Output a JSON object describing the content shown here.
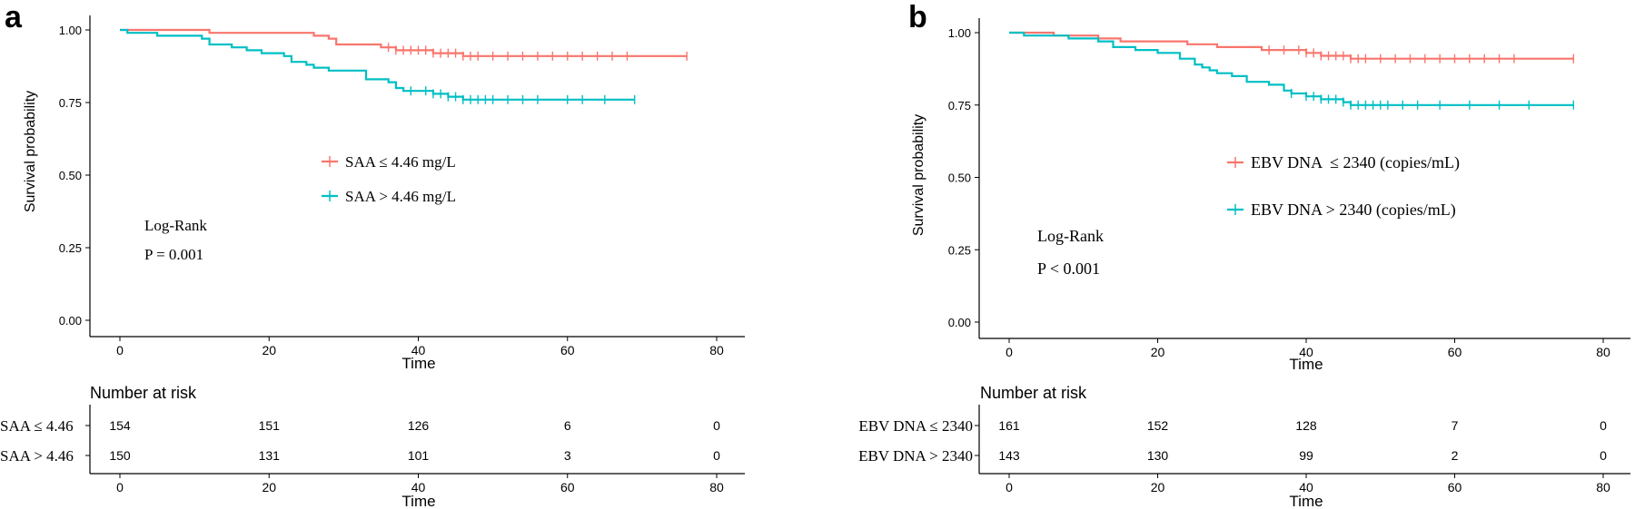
{
  "chart_data": [
    {
      "panel": "a",
      "type": "line",
      "ylabel": "Survival probability",
      "xlabel": "Time",
      "xlim": [
        0,
        80
      ],
      "ylim": [
        0,
        1
      ],
      "x_ticks": [
        "0",
        "20",
        "40",
        "60",
        "80"
      ],
      "y_ticks": [
        "0.00",
        "0.25",
        "0.50",
        "0.75",
        "1.00"
      ],
      "legend_placement": "center",
      "annotation": [
        "Log-Rank",
        "P = 0.001"
      ],
      "series": [
        {
          "name": "SAA ≤ 4.46 mg/L",
          "color": "#f8766d",
          "x": [
            0,
            10,
            12,
            25,
            26,
            28,
            29,
            34,
            35,
            37,
            40,
            42,
            44,
            46,
            76
          ],
          "y": [
            1.0,
            1.0,
            0.99,
            0.99,
            0.98,
            0.97,
            0.95,
            0.95,
            0.94,
            0.93,
            0.93,
            0.92,
            0.92,
            0.91,
            0.91
          ],
          "censor_x": [
            36,
            37,
            38,
            39,
            40,
            41,
            42,
            43,
            44,
            45,
            46,
            47,
            48,
            50,
            52,
            54,
            56,
            58,
            60,
            62,
            64,
            66,
            68,
            76
          ]
        },
        {
          "name": "SAA > 4.46 mg/L",
          "color": "#00bfc4",
          "x": [
            0,
            1,
            3,
            5,
            8,
            11,
            12,
            15,
            17,
            19,
            21,
            22,
            23,
            25,
            26,
            28,
            30,
            33,
            35,
            36,
            37,
            38,
            40,
            42,
            44,
            46,
            69
          ],
          "y": [
            1.0,
            0.99,
            0.99,
            0.98,
            0.98,
            0.97,
            0.95,
            0.94,
            0.93,
            0.92,
            0.92,
            0.91,
            0.89,
            0.88,
            0.87,
            0.86,
            0.86,
            0.83,
            0.83,
            0.82,
            0.8,
            0.79,
            0.79,
            0.78,
            0.77,
            0.76,
            0.76
          ],
          "censor_x": [
            39,
            41,
            42,
            43,
            44,
            45,
            46,
            47,
            48,
            49,
            50,
            52,
            54,
            56,
            60,
            62,
            65,
            69
          ]
        }
      ],
      "risk_table": {
        "title": "Number at risk",
        "time_points": [
          0,
          20,
          40,
          60,
          80
        ],
        "rows": [
          {
            "label": "SAA ≤ 4.46",
            "values": [
              "154",
              "151",
              "126",
              "6",
              "0"
            ]
          },
          {
            "label": "SAA > 4.46",
            "values": [
              "150",
              "131",
              "101",
              "3",
              "0"
            ]
          }
        ],
        "xlabel": "Time"
      }
    },
    {
      "panel": "b",
      "type": "line",
      "ylabel": "Survival probability",
      "xlabel": "Time",
      "xlim": [
        0,
        80
      ],
      "ylim": [
        0,
        1
      ],
      "x_ticks": [
        "0",
        "20",
        "40",
        "60",
        "80"
      ],
      "y_ticks": [
        "0.00",
        "0.25",
        "0.50",
        "0.75",
        "1.00"
      ],
      "legend_placement": "center-right",
      "annotation": [
        "Log-Rank",
        "P < 0.001"
      ],
      "series": [
        {
          "name": "EBV DNA  ≤ 2340 (copies/mL)",
          "color": "#f8766d",
          "x": [
            0,
            3,
            6,
            10,
            12,
            15,
            22,
            24,
            28,
            33,
            34,
            36,
            40,
            42,
            44,
            46,
            76
          ],
          "y": [
            1.0,
            1.0,
            0.99,
            0.99,
            0.98,
            0.97,
            0.97,
            0.96,
            0.95,
            0.95,
            0.94,
            0.94,
            0.93,
            0.92,
            0.92,
            0.91,
            0.91
          ],
          "censor_x": [
            35,
            37,
            39,
            40,
            41,
            42,
            43,
            44,
            45,
            46,
            47,
            48,
            50,
            52,
            54,
            56,
            58,
            60,
            62,
            64,
            66,
            68,
            76
          ]
        },
        {
          "name": "EBV DNA > 2340 (copies/mL)",
          "color": "#00bfc4",
          "x": [
            0,
            2,
            4,
            8,
            12,
            14,
            17,
            20,
            23,
            25,
            26,
            27,
            28,
            30,
            32,
            35,
            37,
            38,
            40,
            42,
            44,
            45,
            46,
            76
          ],
          "y": [
            1.0,
            0.99,
            0.99,
            0.98,
            0.97,
            0.95,
            0.94,
            0.93,
            0.91,
            0.89,
            0.88,
            0.87,
            0.86,
            0.85,
            0.83,
            0.82,
            0.8,
            0.79,
            0.78,
            0.77,
            0.77,
            0.76,
            0.75,
            0.75
          ],
          "censor_x": [
            38,
            40,
            41,
            42,
            43,
            44,
            45,
            46,
            47,
            48,
            49,
            50,
            51,
            53,
            55,
            58,
            62,
            66,
            70,
            76
          ]
        }
      ],
      "risk_table": {
        "title": "Number at risk",
        "time_points": [
          0,
          20,
          40,
          60,
          80
        ],
        "rows": [
          {
            "label": "EBV DNA  ≤ 2340",
            "values": [
              "161",
              "152",
              "128",
              "7",
              "0"
            ]
          },
          {
            "label": "EBV DNA  > 2340",
            "values": [
              "143",
              "130",
              "99",
              "2",
              "0"
            ]
          }
        ],
        "xlabel": "Time"
      }
    }
  ]
}
